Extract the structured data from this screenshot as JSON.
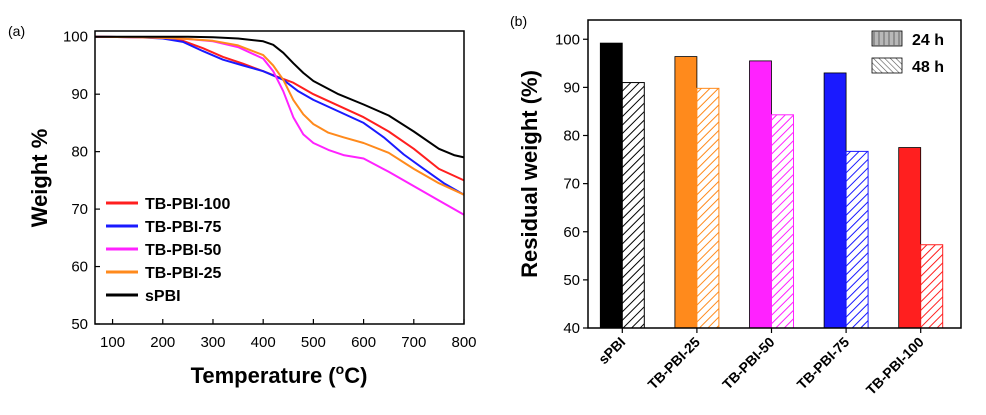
{
  "chart_data": [
    {
      "type": "line",
      "panel_label": "(a)",
      "xlabel": "Temperature (°C)",
      "xlabel_main": "Temperature (",
      "xlabel_sup": "o",
      "xlabel_end": "C)",
      "ylabel": "Weight %",
      "xlim": [
        65,
        800
      ],
      "ylim": [
        50,
        101
      ],
      "xticks": [
        100,
        200,
        300,
        400,
        500,
        600,
        700,
        800
      ],
      "yticks": [
        50,
        60,
        70,
        80,
        90,
        100
      ],
      "legend_position": "lower-left",
      "series": [
        {
          "name": "TB-PBI-100",
          "color": "#ff1f1f",
          "x": [
            65,
            150,
            200,
            240,
            280,
            320,
            360,
            400,
            430,
            460,
            500,
            550,
            600,
            650,
            700,
            750,
            800
          ],
          "y": [
            100,
            99.9,
            99.8,
            99.3,
            98,
            96.5,
            95.3,
            94,
            93,
            92,
            90,
            88,
            86,
            83.5,
            80.5,
            77,
            75
          ]
        },
        {
          "name": "TB-PBI-75",
          "color": "#1a1aff",
          "x": [
            65,
            150,
            200,
            240,
            280,
            320,
            360,
            400,
            440,
            470,
            500,
            550,
            600,
            640,
            680,
            720,
            760,
            800
          ],
          "y": [
            100,
            99.9,
            99.7,
            99.1,
            97.5,
            96,
            95,
            94,
            92.5,
            90.5,
            89,
            87,
            85,
            82.5,
            79.5,
            77,
            74.5,
            72.5
          ]
        },
        {
          "name": "TB-PBI-50",
          "color": "#ff22ff",
          "x": [
            65,
            150,
            200,
            250,
            300,
            350,
            400,
            420,
            440,
            460,
            480,
            500,
            530,
            560,
            600,
            650,
            700,
            750,
            800
          ],
          "y": [
            100,
            99.9,
            99.8,
            99.6,
            99.2,
            98.2,
            96.2,
            94,
            90.5,
            86,
            83,
            81.5,
            80.3,
            79.4,
            78.8,
            76.5,
            74,
            71.5,
            69
          ]
        },
        {
          "name": "TB-PBI-25",
          "color": "#ff8a1c",
          "x": [
            65,
            150,
            200,
            250,
            300,
            350,
            400,
            420,
            440,
            460,
            480,
            500,
            530,
            560,
            600,
            650,
            700,
            750,
            800
          ],
          "y": [
            100,
            99.9,
            99.8,
            99.6,
            99.3,
            98.5,
            96.8,
            95,
            92.5,
            89,
            86.5,
            84.8,
            83.3,
            82.5,
            81.5,
            79.8,
            77,
            74.5,
            72.5
          ]
        },
        {
          "name": "sPBI",
          "color": "#000000",
          "x": [
            65,
            150,
            200,
            250,
            300,
            350,
            400,
            420,
            440,
            460,
            480,
            500,
            550,
            600,
            650,
            700,
            750,
            780,
            800
          ],
          "y": [
            100,
            100,
            100,
            100,
            99.9,
            99.7,
            99.2,
            98.6,
            97.2,
            95.4,
            93.7,
            92.3,
            90,
            88.2,
            86.3,
            83.5,
            80.5,
            79.4,
            79
          ]
        }
      ]
    },
    {
      "type": "bar",
      "panel_label": "(b)",
      "ylabel": "Residual weight (%)",
      "ylim": [
        40,
        104
      ],
      "yticks": [
        40,
        50,
        60,
        70,
        80,
        90,
        100
      ],
      "categories": [
        "sPBI",
        "TB-PBI-25",
        "TB-PBI-50",
        "TB-PBI-75",
        "TB-PBI-100"
      ],
      "bar_colors": [
        "#000000",
        "#ff8a1c",
        "#ff22ff",
        "#1a1aff",
        "#ff1f1f"
      ],
      "legend_position": "top-right",
      "series": [
        {
          "name": "24 h",
          "style": "solid",
          "values": [
            99.2,
            96.4,
            95.5,
            93.0,
            77.5
          ]
        },
        {
          "name": "48 h",
          "style": "hatched",
          "values": [
            91.0,
            89.8,
            84.3,
            76.7,
            57.3
          ]
        }
      ]
    }
  ]
}
